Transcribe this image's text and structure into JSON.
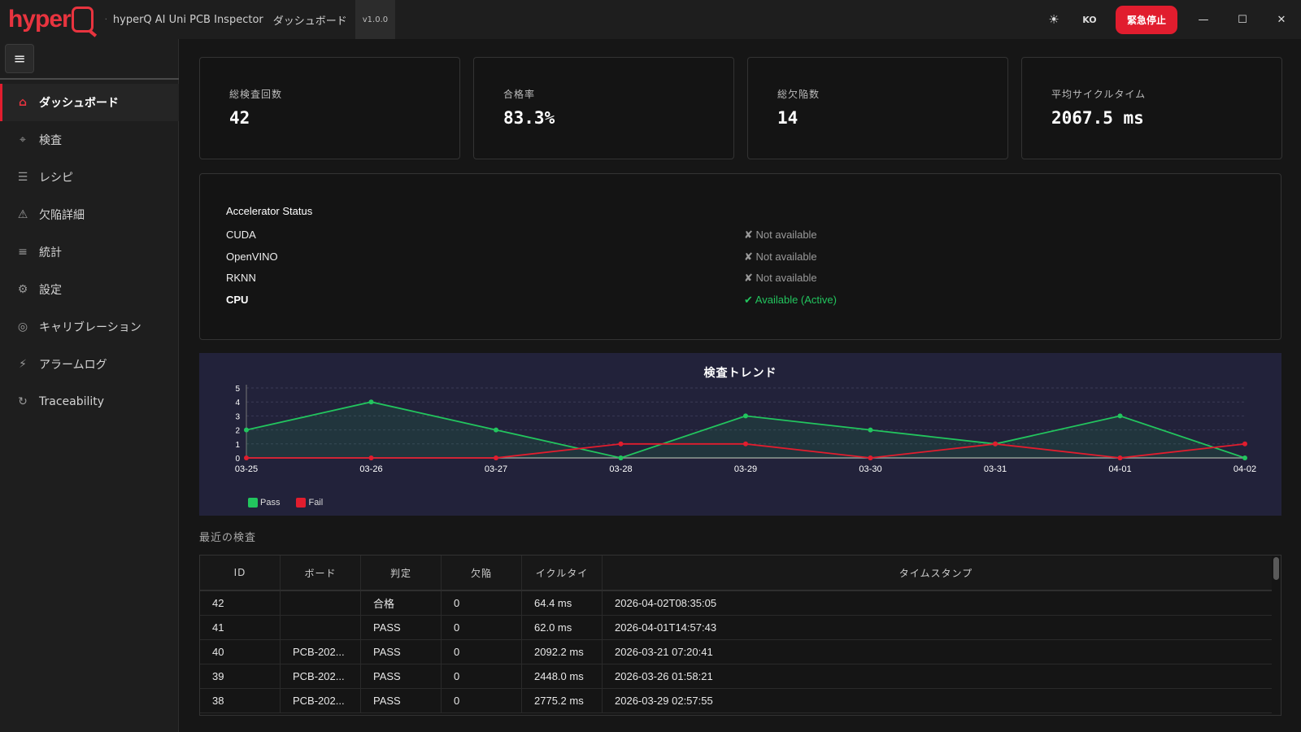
{
  "titlebar": {
    "logo_text": "hyper",
    "logo_q": "Q",
    "separator": "·",
    "app_name": "hyperQ AI Uni PCB Inspector",
    "page_name": "ダッシュボード",
    "version": "v1.0.0",
    "theme_icon": "☀",
    "language": "KO",
    "estop_label": "緊急停止",
    "minimize": "—",
    "maximize": "☐",
    "close": "✕"
  },
  "sidebar": {
    "menu_icon": "≡",
    "items": [
      {
        "label": "ダッシュボード",
        "icon": "⌂"
      },
      {
        "label": "検査",
        "icon": "⌖"
      },
      {
        "label": "レシピ",
        "icon": "☰"
      },
      {
        "label": "欠陥詳細",
        "icon": "⚠"
      },
      {
        "label": "統計",
        "icon": "≡"
      },
      {
        "label": "設定",
        "icon": "⚙"
      },
      {
        "label": "キャリブレーション",
        "icon": "◎"
      },
      {
        "label": "アラームログ",
        "icon": "⚡"
      },
      {
        "label": "Traceability",
        "icon": "↻"
      }
    ]
  },
  "stats": [
    {
      "label": "総検査回数",
      "value": "42"
    },
    {
      "label": "合格率",
      "value": "83.3%"
    },
    {
      "label": "総欠陥数",
      "value": "14"
    },
    {
      "label": "平均サイクルタイム",
      "value": "2067.5 ms"
    }
  ],
  "accelerator": {
    "title": "Accelerator Status",
    "rows": [
      {
        "name": "CUDA",
        "status": "✘ Not available",
        "active": false
      },
      {
        "name": "OpenVINO",
        "status": "✘ Not available",
        "active": false
      },
      {
        "name": "RKNN",
        "status": "✘ Not available",
        "active": false
      },
      {
        "name": "CPU",
        "status": "✔ Available (Active)",
        "active": true
      }
    ]
  },
  "chart_data": {
    "type": "line",
    "title": "検査トレンド",
    "categories": [
      "03-25",
      "03-26",
      "03-27",
      "03-28",
      "03-29",
      "03-30",
      "03-31",
      "04-01",
      "04-02"
    ],
    "ylim": [
      0,
      5
    ],
    "yticks": [
      "0",
      "1",
      "2",
      "3",
      "4",
      "5"
    ],
    "grid": true,
    "legend_position": "bottom-left",
    "series": [
      {
        "name": "Pass",
        "color": "#22c55e",
        "values": [
          2,
          4,
          2,
          0,
          3,
          2,
          1,
          3,
          0
        ]
      },
      {
        "name": "Fail",
        "color": "#e11d2e",
        "values": [
          0,
          0,
          0,
          1,
          1,
          0,
          1,
          0,
          1
        ]
      }
    ]
  },
  "recent": {
    "title": "最近の検査",
    "columns": [
      "ID",
      "ボード",
      "判定",
      "欠陥",
      "イクルタイ",
      "タイムスタンプ"
    ],
    "rows": [
      [
        "42",
        "",
        "合格",
        "0",
        "64.4 ms",
        "2026-04-02T08:35:05"
      ],
      [
        "41",
        "",
        "PASS",
        "0",
        "62.0 ms",
        "2026-04-01T14:57:43"
      ],
      [
        "40",
        "PCB-202...",
        "PASS",
        "0",
        "2092.2 ms",
        "2026-03-21 07:20:41"
      ],
      [
        "39",
        "PCB-202...",
        "PASS",
        "0",
        "2448.0 ms",
        "2026-03-26 01:58:21"
      ],
      [
        "38",
        "PCB-202...",
        "PASS",
        "0",
        "2775.2 ms",
        "2026-03-29 02:57:55"
      ]
    ]
  }
}
